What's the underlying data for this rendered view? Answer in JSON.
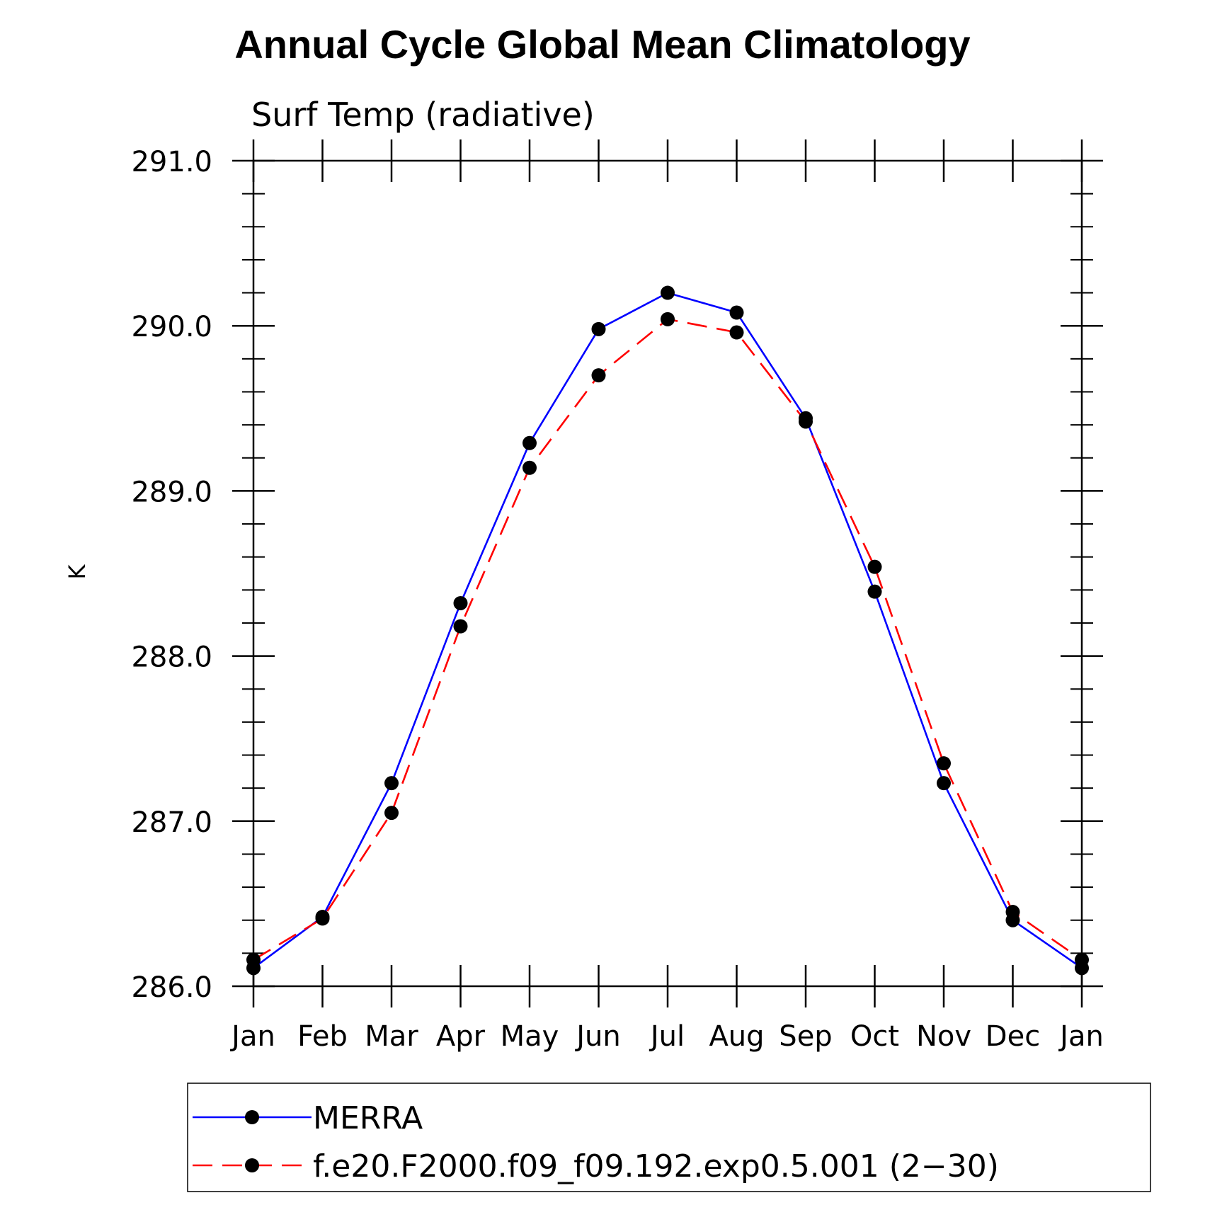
{
  "chart_data": {
    "type": "line",
    "title": "Annual Cycle Global Mean Climatology",
    "subtitle": "Surf Temp (radiative)",
    "xlabel": "",
    "ylabel": "K",
    "categories": [
      "Jan",
      "Feb",
      "Mar",
      "Apr",
      "May",
      "Jun",
      "Jul",
      "Aug",
      "Sep",
      "Oct",
      "Nov",
      "Dec",
      "Jan"
    ],
    "y_ticks": [
      "291.0",
      "290.0",
      "289.0",
      "288.0",
      "287.0",
      "286.0"
    ],
    "ylim": [
      286.0,
      291.0
    ],
    "grid": false,
    "legend_position": "bottom",
    "series": [
      {
        "name": "MERRA",
        "color": "#0000ff",
        "line_style": "solid",
        "values": [
          286.11,
          286.42,
          287.23,
          288.32,
          289.29,
          289.98,
          290.2,
          290.08,
          289.44,
          288.39,
          287.23,
          286.4,
          286.11
        ]
      },
      {
        "name": "f.e20.F2000.f09_f09.192.exp0.5.001 (2−30)",
        "color": "#ff0000",
        "line_style": "dashed",
        "values": [
          286.16,
          286.41,
          287.05,
          288.18,
          289.14,
          289.7,
          290.04,
          289.96,
          289.42,
          288.54,
          287.35,
          286.45,
          286.16
        ]
      }
    ]
  }
}
